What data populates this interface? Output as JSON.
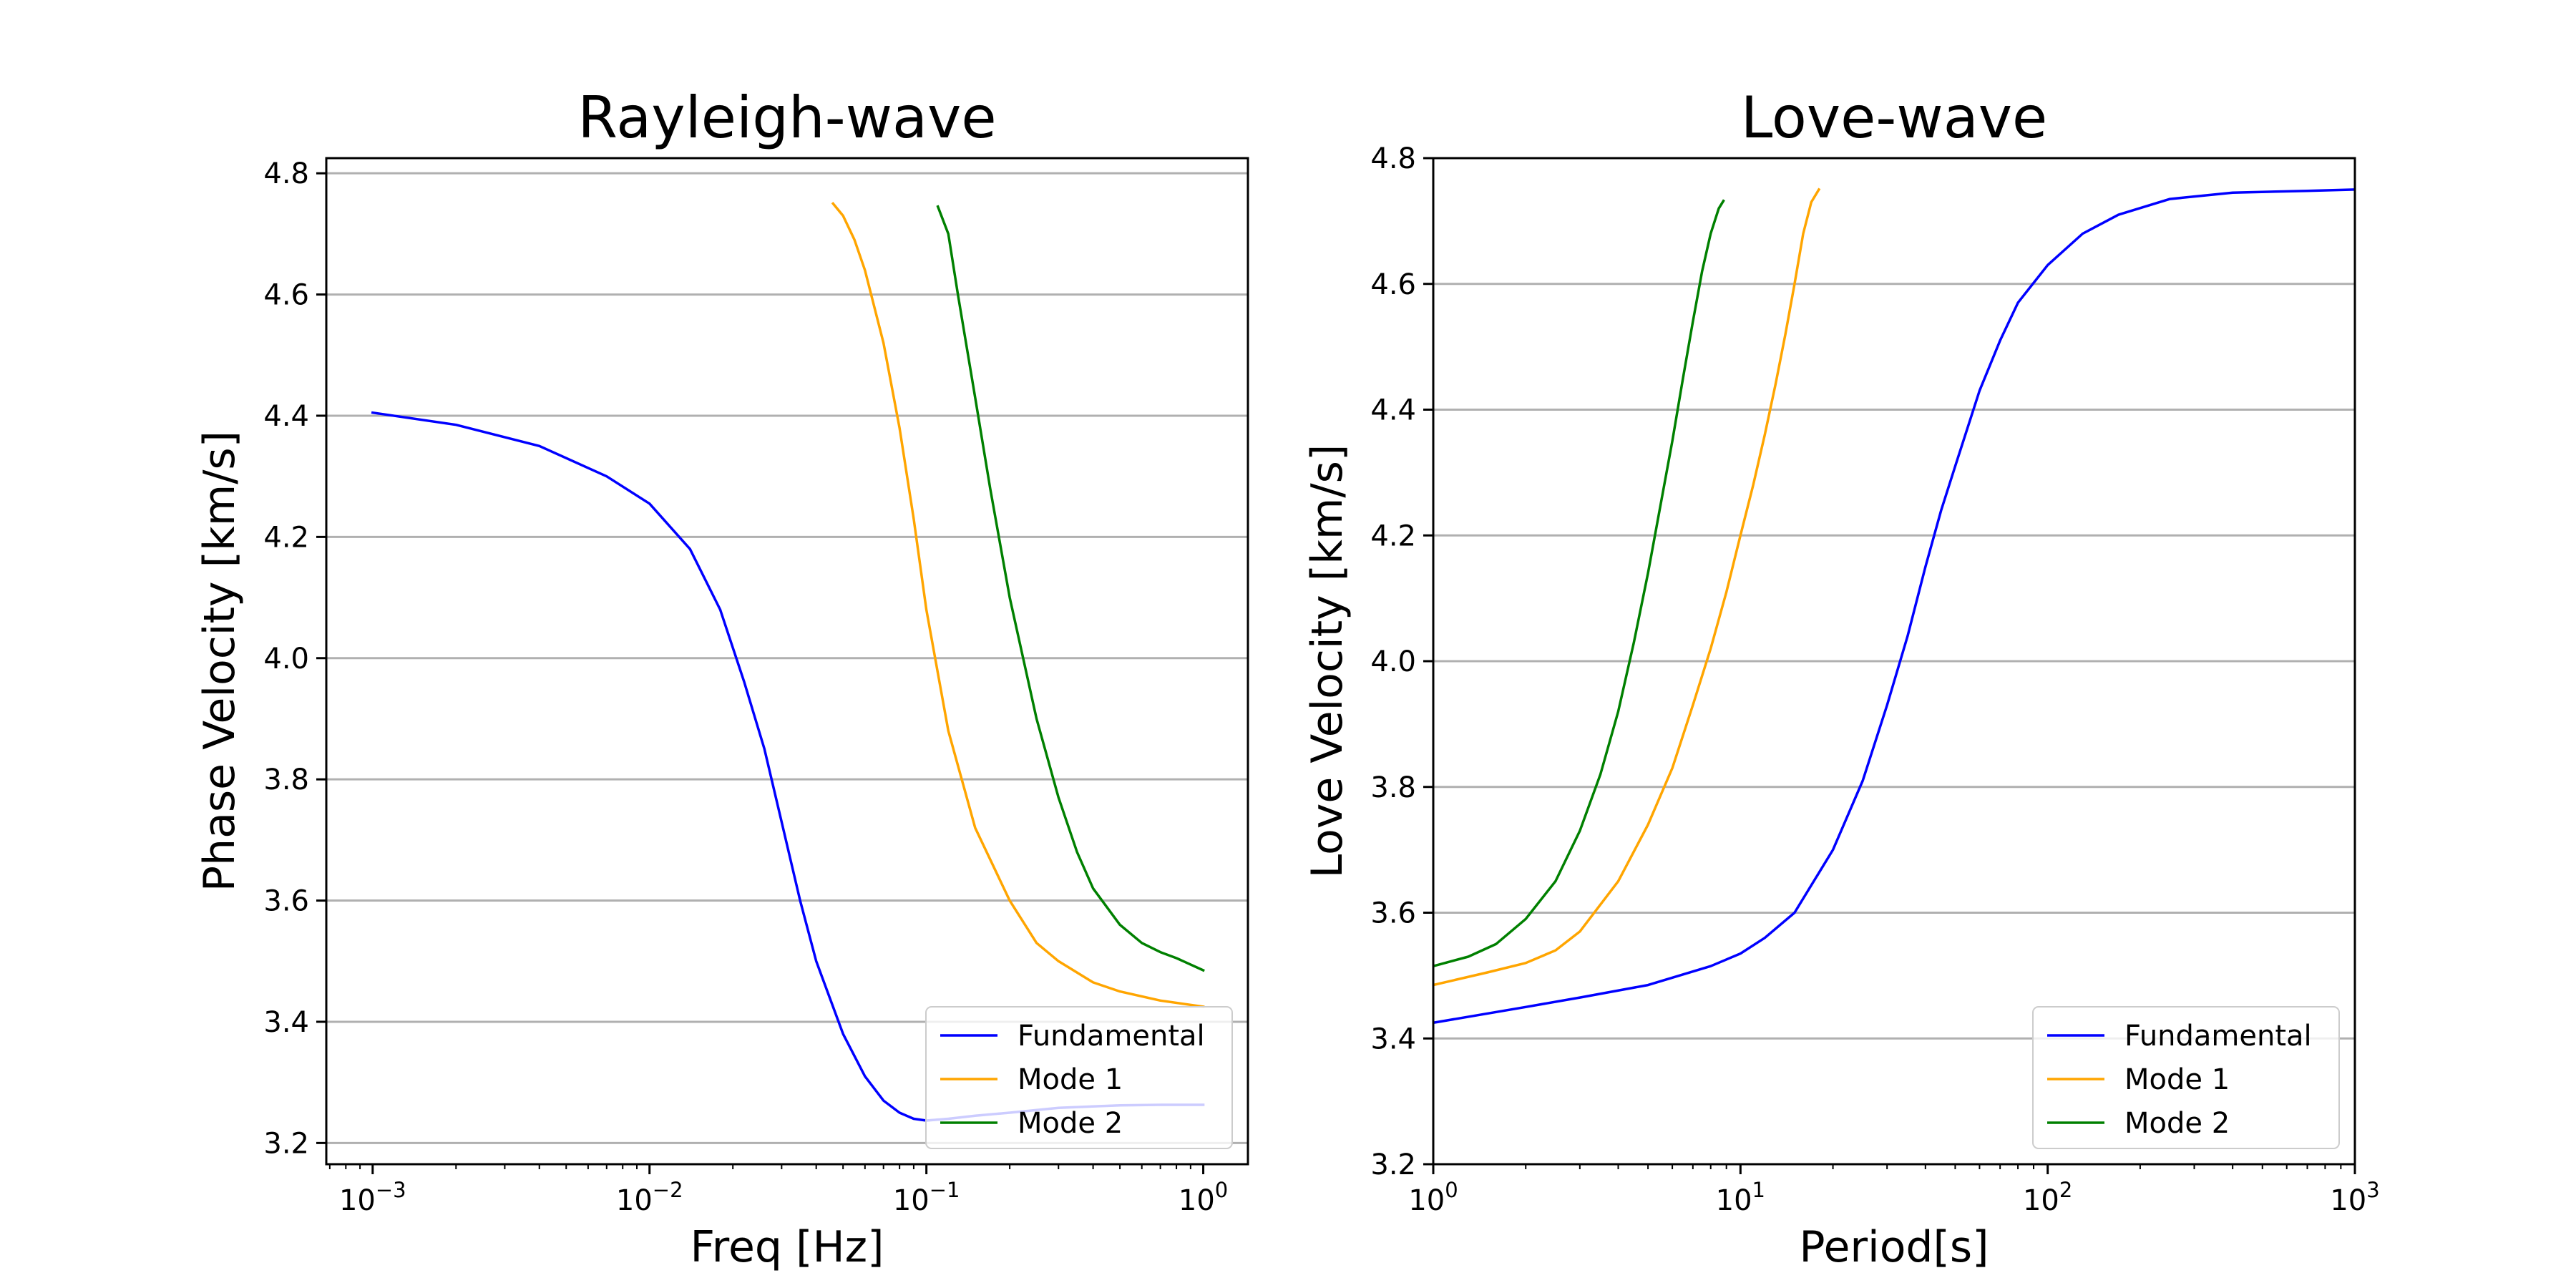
{
  "chart_data": [
    {
      "type": "line",
      "title": "Rayleigh-wave",
      "xlabel": "Freq [Hz]",
      "ylabel": "Phase Velocity [km/s]",
      "xscale": "log",
      "xlim": [
        0.00068,
        1.45
      ],
      "ylim": [
        3.165,
        4.825
      ],
      "x_ticks": [
        {
          "value": 0.001,
          "base": "10",
          "exp": "−3"
        },
        {
          "value": 0.01,
          "base": "10",
          "exp": "−2"
        },
        {
          "value": 0.1,
          "base": "10",
          "exp": "−1"
        },
        {
          "value": 1,
          "base": "10",
          "exp": "0"
        }
      ],
      "y_ticks": [
        3.2,
        3.4,
        3.6,
        3.8,
        4.0,
        4.2,
        4.4,
        4.6,
        4.8
      ],
      "y_tick_labels": [
        "3.2",
        "3.4",
        "3.6",
        "3.8",
        "4.0",
        "4.2",
        "4.4",
        "4.6",
        "4.8"
      ],
      "grid": "y",
      "legend_position": "bottom-right",
      "series": [
        {
          "name": "Fundamental",
          "color": "#0000ff",
          "x": [
            0.001,
            0.002,
            0.004,
            0.007,
            0.01,
            0.014,
            0.018,
            0.022,
            0.026,
            0.03,
            0.035,
            0.04,
            0.05,
            0.06,
            0.07,
            0.08,
            0.09,
            0.1,
            0.12,
            0.15,
            0.2,
            0.3,
            0.5,
            0.7,
            1.0
          ],
          "y": [
            4.405,
            4.385,
            4.35,
            4.3,
            4.255,
            4.18,
            4.08,
            3.96,
            3.85,
            3.73,
            3.6,
            3.5,
            3.38,
            3.31,
            3.27,
            3.25,
            3.24,
            3.237,
            3.24,
            3.245,
            3.25,
            3.258,
            3.262,
            3.263,
            3.263
          ]
        },
        {
          "name": "Mode 1",
          "color": "#ffa500",
          "x": [
            0.046,
            0.05,
            0.055,
            0.06,
            0.07,
            0.08,
            0.09,
            0.1,
            0.12,
            0.15,
            0.2,
            0.25,
            0.3,
            0.4,
            0.5,
            0.7,
            1.0
          ],
          "y": [
            4.75,
            4.73,
            4.69,
            4.64,
            4.52,
            4.38,
            4.23,
            4.08,
            3.88,
            3.72,
            3.6,
            3.53,
            3.5,
            3.465,
            3.45,
            3.435,
            3.425
          ]
        },
        {
          "name": "Mode 2",
          "color": "#008000",
          "x": [
            0.11,
            0.12,
            0.13,
            0.15,
            0.17,
            0.2,
            0.25,
            0.3,
            0.35,
            0.4,
            0.5,
            0.6,
            0.7,
            0.8,
            1.0
          ],
          "y": [
            4.745,
            4.7,
            4.6,
            4.43,
            4.28,
            4.1,
            3.9,
            3.77,
            3.68,
            3.62,
            3.56,
            3.53,
            3.515,
            3.505,
            3.485
          ]
        }
      ]
    },
    {
      "type": "line",
      "title": "Love-wave",
      "xlabel": "Period[s]",
      "ylabel": "Love Velocity [km/s]",
      "xscale": "log",
      "xlim": [
        1,
        1000
      ],
      "ylim": [
        3.2,
        4.8
      ],
      "x_ticks": [
        {
          "value": 1,
          "base": "10",
          "exp": "0"
        },
        {
          "value": 10,
          "base": "10",
          "exp": "1"
        },
        {
          "value": 100,
          "base": "10",
          "exp": "2"
        },
        {
          "value": 1000,
          "base": "10",
          "exp": "3"
        }
      ],
      "y_ticks": [
        3.2,
        3.4,
        3.6,
        3.8,
        4.0,
        4.2,
        4.4,
        4.6,
        4.8
      ],
      "y_tick_labels": [
        "3.2",
        "3.4",
        "3.6",
        "3.8",
        "4.0",
        "4.2",
        "4.4",
        "4.6",
        "4.8"
      ],
      "grid": "y",
      "legend_position": "bottom-right",
      "series": [
        {
          "name": "Fundamental",
          "color": "#0000ff",
          "x": [
            1,
            2,
            3,
            5,
            8,
            10,
            12,
            15,
            20,
            25,
            30,
            35,
            40,
            45,
            50,
            60,
            70,
            80,
            100,
            130,
            170,
            250,
            400,
            700,
            1000
          ],
          "y": [
            3.425,
            3.45,
            3.465,
            3.485,
            3.515,
            3.535,
            3.56,
            3.6,
            3.7,
            3.81,
            3.93,
            4.04,
            4.15,
            4.24,
            4.31,
            4.43,
            4.51,
            4.57,
            4.63,
            4.68,
            4.71,
            4.735,
            4.745,
            4.748,
            4.75
          ]
        },
        {
          "name": "Mode 1",
          "color": "#ffa500",
          "x": [
            1,
            1.5,
            2,
            2.5,
            3,
            4,
            5,
            6,
            7,
            8,
            9,
            10,
            11,
            12,
            13,
            14,
            15,
            16,
            17,
            18
          ],
          "y": [
            3.485,
            3.505,
            3.52,
            3.54,
            3.57,
            3.65,
            3.74,
            3.83,
            3.93,
            4.02,
            4.11,
            4.2,
            4.28,
            4.36,
            4.44,
            4.52,
            4.6,
            4.68,
            4.73,
            4.75
          ]
        },
        {
          "name": "Mode 2",
          "color": "#008000",
          "x": [
            1,
            1.3,
            1.6,
            2,
            2.5,
            3,
            3.5,
            4,
            4.5,
            5,
            5.5,
            6,
            6.5,
            7,
            7.5,
            8,
            8.5,
            8.8
          ],
          "y": [
            3.515,
            3.53,
            3.55,
            3.59,
            3.65,
            3.73,
            3.82,
            3.92,
            4.03,
            4.14,
            4.25,
            4.35,
            4.45,
            4.54,
            4.62,
            4.68,
            4.72,
            4.732
          ]
        }
      ]
    }
  ]
}
